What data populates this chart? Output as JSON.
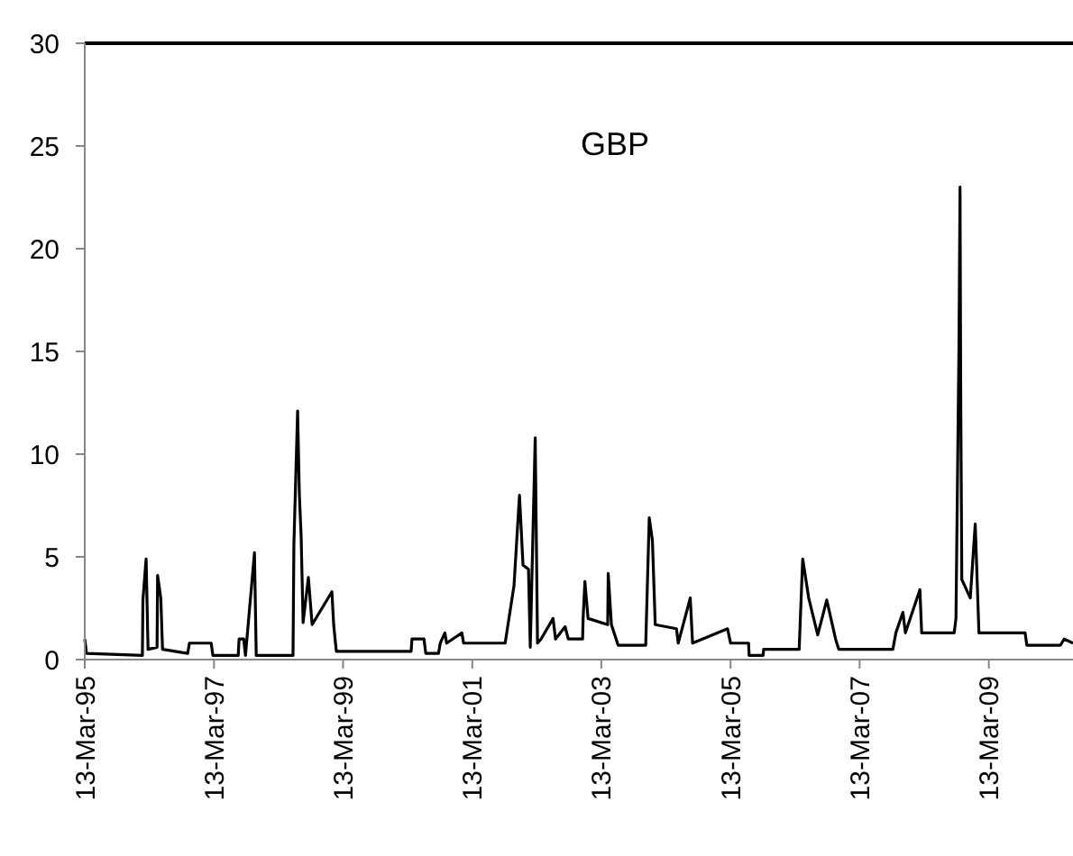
{
  "chart_data": {
    "type": "line",
    "title": "GBP",
    "x": [
      "1995-03-13",
      "1995-03-23",
      "1996-02-02",
      "1996-02-05",
      "1996-02-23",
      "1996-03-05",
      "1996-04-25",
      "1996-04-28",
      "1996-05-16",
      "1996-05-26",
      "1996-10-15",
      "1996-10-25",
      "1997-02-25",
      "1997-03-07",
      "1997-07-28",
      "1997-08-02",
      "1997-08-28",
      "1997-09-07",
      "1997-10-28",
      "1997-11-07",
      "1998-06-03",
      "1998-06-08",
      "1998-06-29",
      "1998-07-09",
      "1998-07-19",
      "1998-07-30",
      "1998-08-29",
      "1998-09-19",
      "1999-01-09",
      "1999-01-19",
      "1999-02-03",
      "2000-04-01",
      "2000-04-06",
      "2000-06-13",
      "2000-06-23",
      "2000-09-03",
      "2000-09-13",
      "2000-10-09",
      "2000-10-19",
      "2001-01-13",
      "2001-01-23",
      "2001-09-15",
      "2001-11-04",
      "2001-12-05",
      "2001-12-25",
      "2002-01-25",
      "2002-02-04",
      "2002-03-04",
      "2002-03-17",
      "2002-04-06",
      "2002-06-13",
      "2002-06-27",
      "2002-08-20",
      "2002-09-07",
      "2002-11-27",
      "2002-11-30",
      "2002-12-10",
      "2002-12-28",
      "2003-04-18",
      "2003-04-21",
      "2003-05-09",
      "2003-06-16",
      "2003-11-19",
      "2003-12-09",
      "2003-12-27",
      "2004-01-12",
      "2004-05-11",
      "2004-05-21",
      "2004-07-28",
      "2004-08-10",
      "2005-02-24",
      "2005-03-13",
      "2005-06-23",
      "2005-06-26",
      "2005-09-13",
      "2005-09-16",
      "2006-04-05",
      "2006-04-25",
      "2006-05-29",
      "2006-07-19",
      "2006-09-08",
      "2006-10-28",
      "2006-11-15",
      "2007-09-17",
      "2007-10-04",
      "2007-11-13",
      "2007-11-27",
      "2008-02-17",
      "2008-02-27",
      "2008-08-29",
      "2008-09-08",
      "2008-09-25",
      "2008-10-01",
      "2008-10-05",
      "2008-10-11",
      "2008-11-28",
      "2008-12-26",
      "2009-01-16",
      "2009-10-04",
      "2009-10-14",
      "2010-04-22",
      "2010-05-13",
      "2010-07-02"
    ],
    "series": [
      {
        "color": "#000000",
        "values": [
          1.0,
          0.3,
          0.2,
          2.9,
          4.9,
          0.5,
          0.6,
          4.1,
          3.0,
          0.5,
          0.3,
          0.8,
          0.8,
          0.2,
          0.2,
          1.0,
          1.0,
          0.2,
          5.2,
          0.2,
          0.2,
          5.6,
          12.1,
          8.0,
          6.0,
          1.8,
          4.0,
          1.7,
          3.3,
          1.7,
          0.4,
          0.4,
          1.0,
          1.0,
          0.3,
          0.3,
          0.8,
          1.3,
          0.8,
          1.3,
          0.8,
          0.8,
          3.6,
          8.0,
          4.6,
          4.4,
          0.6,
          10.8,
          0.8,
          1.0,
          2.0,
          1.0,
          1.6,
          1.0,
          1.0,
          2.0,
          3.8,
          2.0,
          1.7,
          4.2,
          1.7,
          0.7,
          0.7,
          6.9,
          5.8,
          1.7,
          1.5,
          0.8,
          3.0,
          0.8,
          1.5,
          0.8,
          0.8,
          0.2,
          0.2,
          0.5,
          0.5,
          4.9,
          3.0,
          1.2,
          2.9,
          1.0,
          0.5,
          0.5,
          1.3,
          2.3,
          1.3,
          3.4,
          1.3,
          1.3,
          2.0,
          15.3,
          23.0,
          12.8,
          3.9,
          3.0,
          6.6,
          1.3,
          1.3,
          0.7,
          0.7,
          1.0,
          0.8
        ]
      }
    ],
    "xlim": [
      "1995-03-13",
      "2010-07-02"
    ],
    "xticks": [
      {
        "value": "1995-03-13",
        "label": "13-Mar-95"
      },
      {
        "value": "1997-03-13",
        "label": "13-Mar-97"
      },
      {
        "value": "1999-03-13",
        "label": "13-Mar-99"
      },
      {
        "value": "2001-03-13",
        "label": "13-Mar-01"
      },
      {
        "value": "2003-03-13",
        "label": "13-Mar-03"
      },
      {
        "value": "2005-03-13",
        "label": "13-Mar-05"
      },
      {
        "value": "2007-03-13",
        "label": "13-Mar-07"
      },
      {
        "value": "2009-03-13",
        "label": "13-Mar-09"
      }
    ],
    "ylim": [
      0,
      30
    ],
    "yticks": [
      0,
      5,
      10,
      15,
      20,
      25,
      30
    ],
    "grid": false,
    "marker": "none",
    "line_style": "solid"
  }
}
